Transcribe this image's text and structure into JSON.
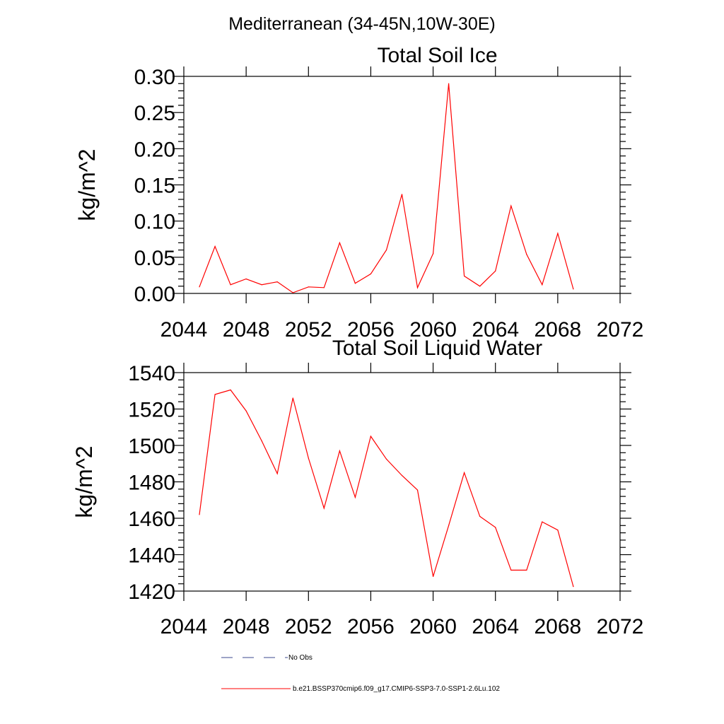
{
  "figure": {
    "suptitle": "Mediterranean (34-45N,10W-30E)",
    "line_color": "#ff0000",
    "obs_color": "#3b4a8f",
    "legend": [
      {
        "label": "No Obs",
        "style": "dashed",
        "color": "#3b4a8f"
      },
      {
        "label": "b.e21.BSSP370cmip6.f09_g17.CMIP6-SSP3-7.0-SSP1-2.6Lu.102",
        "style": "solid",
        "color": "#ff0000"
      }
    ]
  },
  "chart_data": [
    {
      "type": "line",
      "title": "Total Soil Ice",
      "xlabel": "",
      "ylabel": "kg/m^2",
      "xlim": [
        2044,
        2072
      ],
      "ylim": [
        0,
        0.3
      ],
      "xticks": [
        "2044",
        "2048",
        "2052",
        "2056",
        "2060",
        "2064",
        "2068",
        "2072"
      ],
      "yticks": [
        "0.00",
        "0.05",
        "0.10",
        "0.15",
        "0.20",
        "0.25",
        "0.30"
      ],
      "grid": false,
      "x": [
        2045,
        2046,
        2047,
        2048,
        2049,
        2050,
        2051,
        2052,
        2053,
        2054,
        2055,
        2056,
        2057,
        2058,
        2059,
        2060,
        2061,
        2062,
        2063,
        2064,
        2065,
        2066,
        2067,
        2068,
        2069
      ],
      "series": [
        {
          "name": "b.e21.BSSP370cmip6.f09_g17.CMIP6-SSP3-7.0-SSP1-2.6Lu.102",
          "values": [
            0.009,
            0.065,
            0.012,
            0.02,
            0.012,
            0.016,
            0.001,
            0.009,
            0.008,
            0.07,
            0.014,
            0.027,
            0.06,
            0.137,
            0.008,
            0.055,
            0.29,
            0.024,
            0.01,
            0.031,
            0.121,
            0.054,
            0.012,
            0.083,
            0.006
          ]
        }
      ]
    },
    {
      "type": "line",
      "title": "Total Soil Liquid Water",
      "xlabel": "",
      "ylabel": "kg/m^2",
      "xlim": [
        2044,
        2072
      ],
      "ylim": [
        1420,
        1540
      ],
      "xticks": [
        "2044",
        "2048",
        "2052",
        "2056",
        "2060",
        "2064",
        "2068",
        "2072"
      ],
      "yticks": [
        "1420",
        "1440",
        "1460",
        "1480",
        "1500",
        "1520",
        "1540"
      ],
      "grid": false,
      "x": [
        2045,
        2046,
        2047,
        2048,
        2049,
        2050,
        2051,
        2052,
        2053,
        2054,
        2055,
        2056,
        2057,
        2058,
        2059,
        2060,
        2061,
        2062,
        2063,
        2064,
        2065,
        2066,
        2067,
        2068,
        2069
      ],
      "series": [
        {
          "name": "b.e21.BSSP370cmip6.f09_g17.CMIP6-SSP3-7.0-SSP1-2.6Lu.102",
          "values": [
            1462,
            1528,
            1530.5,
            1519,
            1502.5,
            1484.5,
            1526,
            1493,
            1465.5,
            1497,
            1471.5,
            1505,
            1492.5,
            1483.5,
            1475.5,
            1428,
            1456,
            1485,
            1461,
            1455,
            1431.5,
            1431.5,
            1458,
            1453.5,
            1422.5
          ]
        }
      ]
    }
  ]
}
